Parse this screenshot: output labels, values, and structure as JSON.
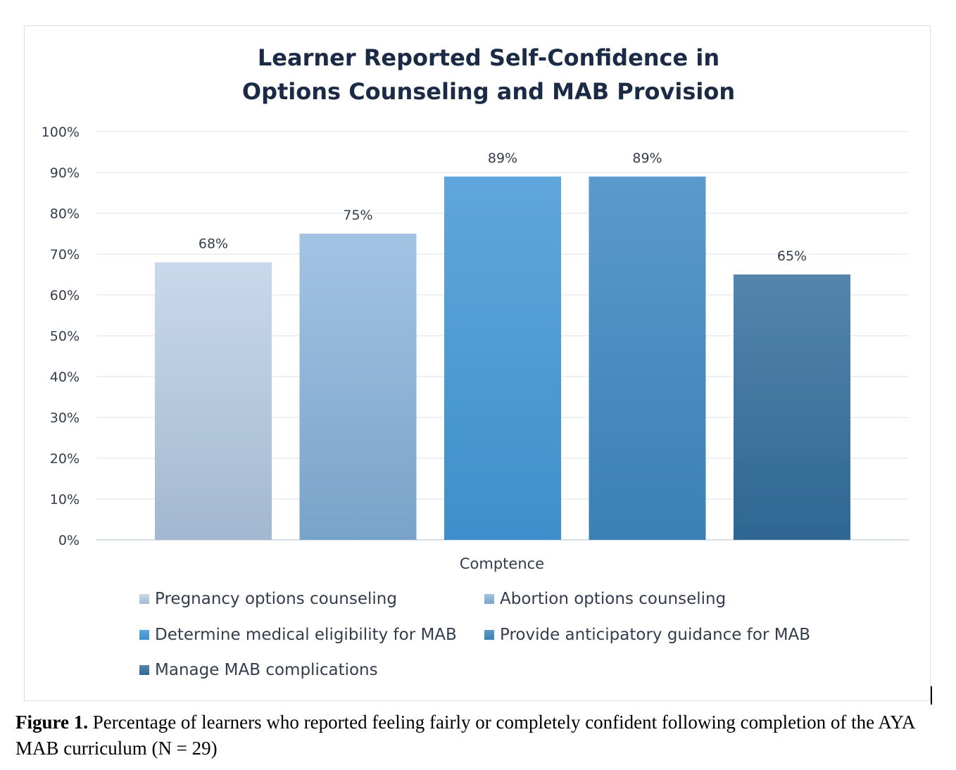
{
  "chart_data": {
    "type": "bar",
    "title": [
      "Learner Reported Self-Confidence in",
      "Options Counseling and MAB Provision"
    ],
    "xlabel": "Comptence",
    "ylabel": "",
    "ylim": [
      0,
      100
    ],
    "yticks": [
      "0%",
      "10%",
      "20%",
      "30%",
      "40%",
      "50%",
      "60%",
      "70%",
      "80%",
      "90%",
      "100%"
    ],
    "grid": true,
    "legend_position": "bottom",
    "series": [
      {
        "name": "Pregnancy options counseling",
        "value": 68,
        "label": "68%",
        "color_top": "#c9d9ec",
        "color_bottom": "#a2b8d0"
      },
      {
        "name": "Abortion options counseling",
        "value": 75,
        "label": "75%",
        "color_top": "#a3c3e3",
        "color_bottom": "#79a3c9"
      },
      {
        "name": "Determine medical eligibility for MAB",
        "value": 89,
        "label": "89%",
        "color_top": "#5fa7dc",
        "color_bottom": "#3e8fcb"
      },
      {
        "name": "Provide anticipatory guidance for MAB",
        "value": 89,
        "label": "89%",
        "color_top": "#5b9acb",
        "color_bottom": "#3a80b5"
      },
      {
        "name": "Manage MAB complications",
        "value": 65,
        "label": "65%",
        "color_top": "#5485ad",
        "color_bottom": "#2e6792"
      }
    ]
  },
  "caption": {
    "bold": "Figure 1.",
    "text": " Percentage of learners who reported feeling fairly or completely confident following completion of the AYA MAB curriculum (N = 29)"
  }
}
